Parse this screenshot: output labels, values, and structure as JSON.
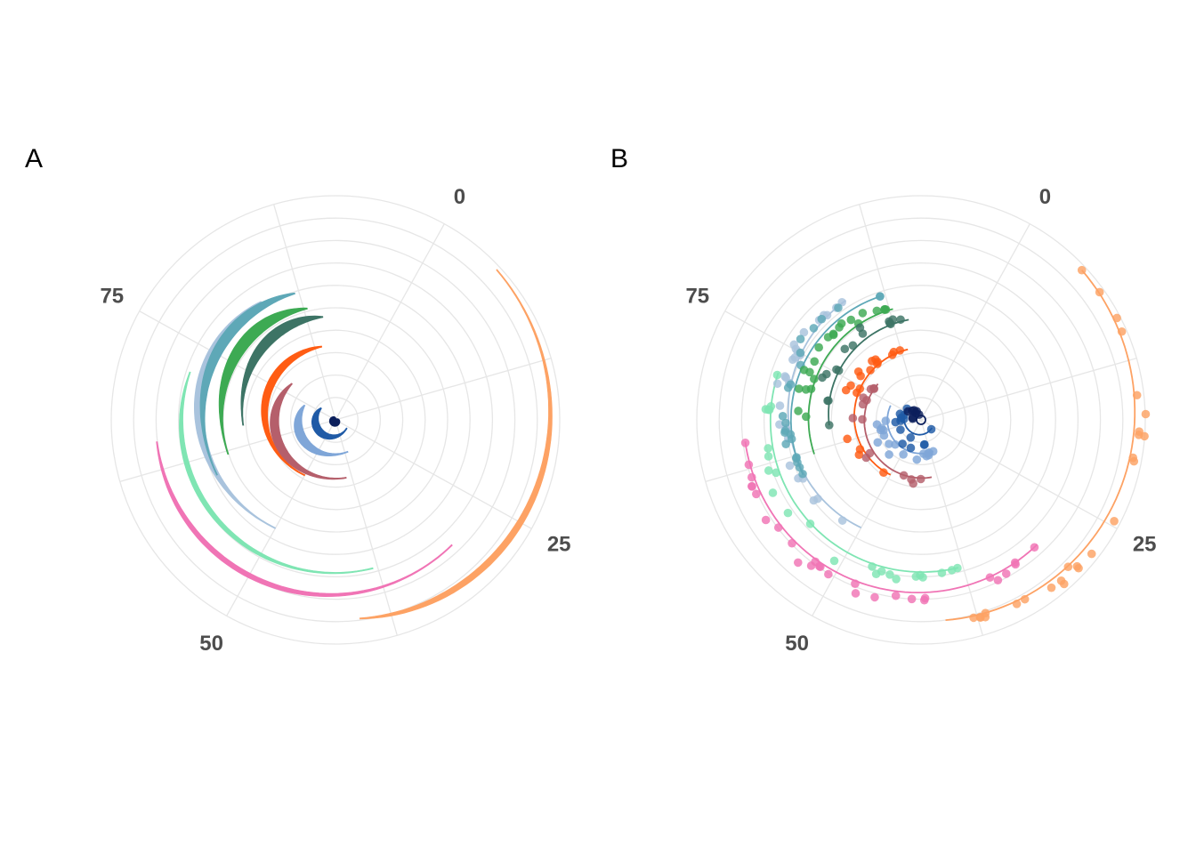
{
  "chart_data": [
    {
      "type": "area",
      "coordinate_system": "polar",
      "title": "A",
      "theta_axis": {
        "range": [
          0,
          100
        ],
        "direction": "clockwise",
        "ticks": [
          0,
          25,
          50,
          75
        ],
        "tick_labels": [
          "0",
          "25",
          "50",
          "75"
        ]
      },
      "grid": true,
      "series": [
        {
          "color": "#FDA264",
          "theta": [
            5,
            40
          ],
          "r_inner": [
            9.8,
            8.9
          ],
          "r_outer": [
            9.8,
            9.3
          ]
        },
        {
          "color": "#F074B5",
          "theta": [
            30,
            65
          ],
          "r_inner": [
            7.6,
            8.0
          ],
          "r_outer": [
            7.6,
            8.3
          ]
        },
        {
          "color": "#7FE5B3",
          "theta": [
            38,
            72
          ],
          "r_inner": [
            6.8,
            6.8
          ],
          "r_outer": [
            6.8,
            7.1
          ]
        },
        {
          "color": "#A9C3DD",
          "theta": [
            50,
            83
          ],
          "r_inner": [
            5.5,
            6.2
          ],
          "r_outer": [
            5.5,
            6.9
          ]
        },
        {
          "color": "#5EA8B7",
          "theta": [
            60,
            87
          ],
          "r_inner": [
            5.8,
            5.9
          ],
          "r_outer": [
            5.8,
            6.6
          ]
        },
        {
          "color": "#3DAA53",
          "theta": [
            62,
            88
          ],
          "r_inner": [
            5.0,
            5.1
          ],
          "r_outer": [
            5.0,
            5.9
          ]
        },
        {
          "color": "#3D7465",
          "theta": [
            66,
            90
          ],
          "r_inner": [
            4.1,
            4.6
          ],
          "r_outer": [
            4.1,
            5.3
          ]
        },
        {
          "color": "#FF5C13",
          "theta": [
            50,
            89
          ],
          "r_inner": [
            2.8,
            3.3
          ],
          "r_outer": [
            2.8,
            3.8
          ]
        },
        {
          "color": "#B55F6B",
          "theta": [
            39,
            78
          ],
          "r_inner": [
            2.6,
            2.5
          ],
          "r_outer": [
            2.6,
            3.1
          ]
        },
        {
          "color": "#7FA6D8",
          "theta": [
            36,
            74
          ],
          "r_inner": [
            1.5,
            1.5
          ],
          "r_outer": [
            1.5,
            2.1
          ]
        },
        {
          "color": "#1F5AA6",
          "theta": [
            27,
            78
          ],
          "r_inner": [
            0.6,
            0.8
          ],
          "r_outer": [
            0.6,
            1.3
          ]
        },
        {
          "color": "#0B1F5C",
          "theta": [
            0,
            100
          ],
          "r_inner": [
            0.0,
            0.0
          ],
          "r_outer": [
            0.25,
            0.25
          ]
        }
      ]
    },
    {
      "type": "scatter",
      "coordinate_system": "polar",
      "title": "B",
      "theta_axis": {
        "range": [
          0,
          100
        ],
        "direction": "clockwise",
        "ticks": [
          0,
          25,
          50,
          75
        ],
        "tick_labels": [
          "0",
          "25",
          "50",
          "75"
        ]
      },
      "grid": true,
      "series": [
        {
          "color": "#FDA264",
          "theta": [
            5,
            40
          ],
          "r_line": [
            9.8,
            9.0
          ],
          "n_points": 26
        },
        {
          "color": "#F074B5",
          "theta": [
            30,
            65
          ],
          "r_line": [
            7.6,
            7.9
          ],
          "n_points": 28
        },
        {
          "color": "#7FE5B3",
          "theta": [
            38,
            72
          ],
          "r_line": [
            6.8,
            6.7
          ],
          "n_points": 24
        },
        {
          "color": "#A9C3DD",
          "theta": [
            50,
            83
          ],
          "r_line": [
            5.5,
            6.3
          ],
          "n_points": 26
        },
        {
          "color": "#5EA8B7",
          "theta": [
            60,
            87
          ],
          "r_line": [
            5.8,
            5.8
          ],
          "n_points": 22
        },
        {
          "color": "#3DAA53",
          "theta": [
            62,
            88
          ],
          "r_line": [
            5.0,
            5.1
          ],
          "n_points": 22
        },
        {
          "color": "#3D7465",
          "theta": [
            66,
            90
          ],
          "r_line": [
            4.1,
            4.5
          ],
          "n_points": 16
        },
        {
          "color": "#FF5C13",
          "theta": [
            50,
            89
          ],
          "r_line": [
            2.8,
            3.2
          ],
          "n_points": 18
        },
        {
          "color": "#B55F6B",
          "theta": [
            39,
            78
          ],
          "r_line": [
            2.6,
            2.5
          ],
          "n_points": 14
        },
        {
          "color": "#7FA6D8",
          "theta": [
            36,
            74
          ],
          "r_line": [
            1.5,
            1.5
          ],
          "n_points": 18
        },
        {
          "color": "#1F5AA6",
          "theta": [
            27,
            78
          ],
          "r_line": [
            0.6,
            0.8
          ],
          "n_points": 14
        },
        {
          "color": "#0B1F5C",
          "theta": [
            0,
            100
          ],
          "r_line": [
            0.2,
            0.2
          ],
          "n_points": 8
        }
      ]
    }
  ]
}
